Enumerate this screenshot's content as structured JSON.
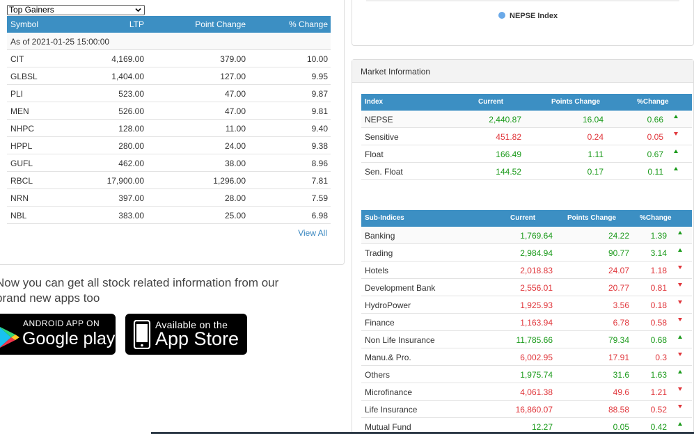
{
  "gainers": {
    "select_value": "Top Gainers",
    "headers": [
      "Symbol",
      "LTP",
      "Point Change",
      "% Change"
    ],
    "as_of": "As of 2021-01-25 15:00:00",
    "rows": [
      {
        "symbol": "CIT",
        "ltp": "4,169.00",
        "point_change": "379.00",
        "pct": "10.00"
      },
      {
        "symbol": "GLBSL",
        "ltp": "1,404.00",
        "point_change": "127.00",
        "pct": "9.95"
      },
      {
        "symbol": "PLI",
        "ltp": "523.00",
        "point_change": "47.00",
        "pct": "9.87"
      },
      {
        "symbol": "MEN",
        "ltp": "526.00",
        "point_change": "47.00",
        "pct": "9.81"
      },
      {
        "symbol": "NHPC",
        "ltp": "128.00",
        "point_change": "11.00",
        "pct": "9.40"
      },
      {
        "symbol": "HPPL",
        "ltp": "280.00",
        "point_change": "24.00",
        "pct": "9.38"
      },
      {
        "symbol": "GUFL",
        "ltp": "462.00",
        "point_change": "38.00",
        "pct": "8.96"
      },
      {
        "symbol": "RBCL",
        "ltp": "17,900.00",
        "point_change": "1,296.00",
        "pct": "7.81"
      },
      {
        "symbol": "NRN",
        "ltp": "397.00",
        "point_change": "28.00",
        "pct": "7.59"
      },
      {
        "symbol": "NBL",
        "ltp": "383.00",
        "point_change": "25.00",
        "pct": "6.98"
      }
    ],
    "view_all": "View All"
  },
  "promo": {
    "line1": "Now you can get all stock related information from our",
    "line2": "brand new apps too",
    "android_small": "ANDROID APP ON",
    "android_big": "Google play",
    "apple_small": "Available on the",
    "apple_big": "App Store"
  },
  "chart_legend": "NEPSE Index",
  "market_info": {
    "title": "Market Information",
    "index_headers": [
      "Index",
      "Current",
      "Points Change",
      "%Change"
    ],
    "indices": [
      {
        "name": "NEPSE",
        "current": "2,440.87",
        "points": "16.04",
        "pct": "0.66",
        "dir": "up"
      },
      {
        "name": "Sensitive",
        "current": "451.82",
        "points": "0.24",
        "pct": "0.05",
        "dir": "down"
      },
      {
        "name": "Float",
        "current": "166.49",
        "points": "1.11",
        "pct": "0.67",
        "dir": "up"
      },
      {
        "name": "Sen. Float",
        "current": "144.52",
        "points": "0.17",
        "pct": "0.11",
        "dir": "up"
      }
    ],
    "sub_headers": [
      "Sub-Indices",
      "Current",
      "Points Change",
      "%Change"
    ],
    "sub_indices": [
      {
        "name": "Banking",
        "current": "1,769.64",
        "points": "24.22",
        "pct": "1.39",
        "dir": "up"
      },
      {
        "name": "Trading",
        "current": "2,984.94",
        "points": "90.77",
        "pct": "3.14",
        "dir": "up"
      },
      {
        "name": "Hotels",
        "current": "2,018.83",
        "points": "24.07",
        "pct": "1.18",
        "dir": "down"
      },
      {
        "name": "Development Bank",
        "current": "2,556.01",
        "points": "20.77",
        "pct": "0.81",
        "dir": "down"
      },
      {
        "name": "HydroPower",
        "current": "1,925.93",
        "points": "3.56",
        "pct": "0.18",
        "dir": "down"
      },
      {
        "name": "Finance",
        "current": "1,163.94",
        "points": "6.78",
        "pct": "0.58",
        "dir": "down"
      },
      {
        "name": "Non Life Insurance",
        "current": "11,785.66",
        "points": "79.34",
        "pct": "0.68",
        "dir": "up"
      },
      {
        "name": "Manu.& Pro.",
        "current": "6,002.95",
        "points": "17.91",
        "pct": "0.3",
        "dir": "down"
      },
      {
        "name": "Others",
        "current": "1,975.74",
        "points": "31.6",
        "pct": "1.63",
        "dir": "up"
      },
      {
        "name": "Microfinance",
        "current": "4,061.38",
        "points": "49.6",
        "pct": "1.21",
        "dir": "down"
      },
      {
        "name": "Life Insurance",
        "current": "16,860.07",
        "points": "88.58",
        "pct": "0.52",
        "dir": "down"
      },
      {
        "name": "Mutual Fund",
        "current": "12.27",
        "points": "0.05",
        "pct": "0.42",
        "dir": "up"
      }
    ]
  }
}
